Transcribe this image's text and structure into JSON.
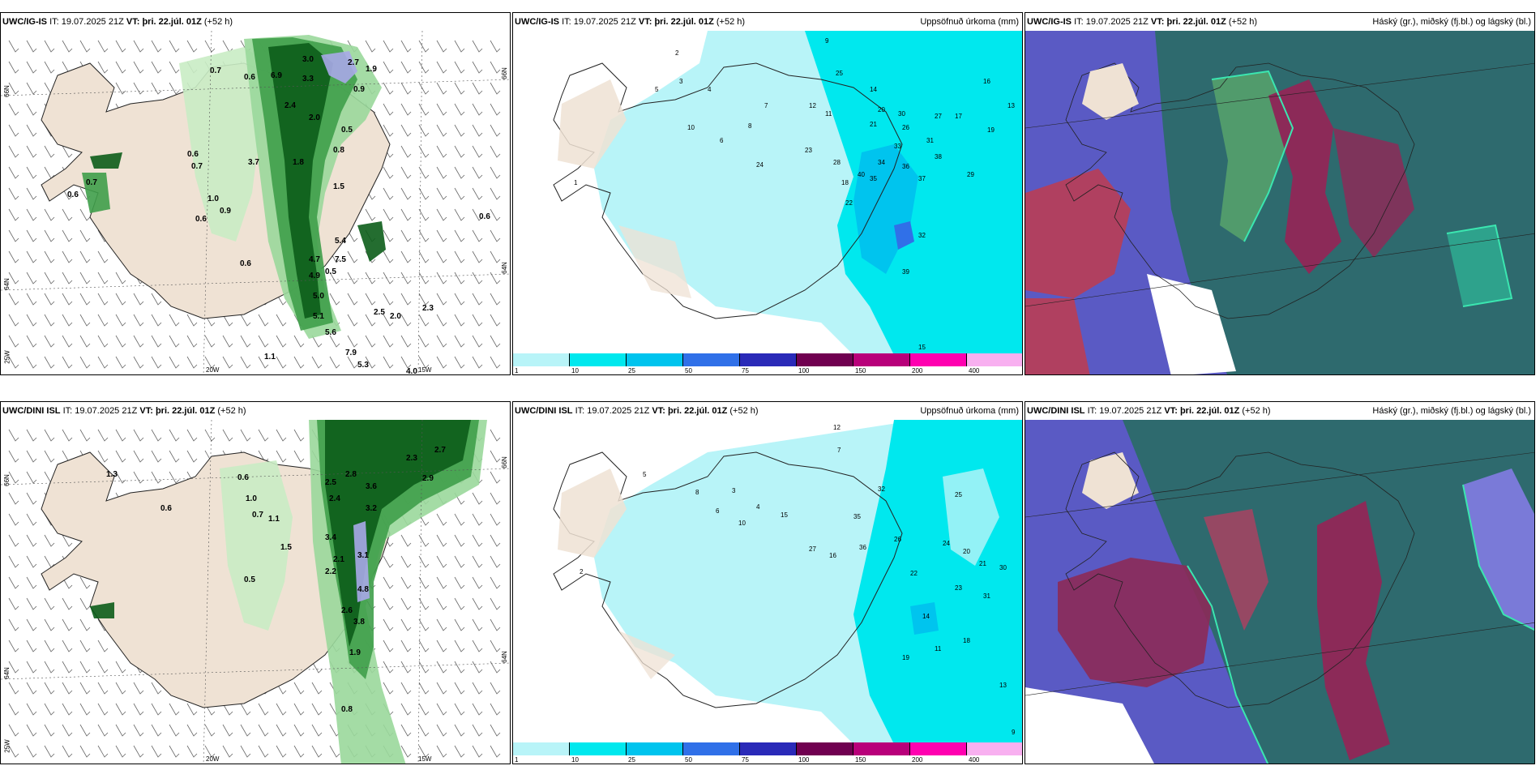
{
  "panels": {
    "p1": {
      "model": "UWC/IG-IS",
      "it_label": "IT:",
      "it": "19.07.2025 21Z",
      "vt_label": "VT:",
      "vt": "þri. 22.júl. 01Z",
      "lead": "(+52 h)",
      "right": ""
    },
    "p2": {
      "model": "UWC/IG-IS",
      "it_label": "IT:",
      "it": "19.07.2025 21Z",
      "vt_label": "VT:",
      "vt": "þri. 22.júl. 01Z",
      "lead": "(+52 h)",
      "right": "Uppsöfnuð úrkoma (mm)"
    },
    "p3": {
      "model": "UWC/IG-IS",
      "it_label": "IT:",
      "it": "19.07.2025 21Z",
      "vt_label": "VT:",
      "vt": "þri. 22.júl. 01Z",
      "lead": "(+52 h)",
      "right": "Háský (gr.), miðský (fj.bl.) og lágský (bl.)"
    },
    "p4": {
      "model": "UWC/DINI ISL",
      "it_label": "IT:",
      "it": "19.07.2025 21Z",
      "vt_label": "VT:",
      "vt": "þri. 22.júl. 01Z",
      "lead": "(+52 h)",
      "right": ""
    },
    "p5": {
      "model": "UWC/DINI ISL",
      "it_label": "IT:",
      "it": "19.07.2025 21Z",
      "vt_label": "VT:",
      "vt": "þri. 22.júl. 01Z",
      "lead": "(+52 h)",
      "right": "Uppsöfnuð úrkoma (mm)"
    },
    "p6": {
      "model": "UWC/DINI ISL",
      "it_label": "IT:",
      "it": "19.07.2025 21Z",
      "vt_label": "VT:",
      "vt": "þri. 22.júl. 01Z",
      "lead": "(+52 h)",
      "right": "Háský (gr.), miðský (fj.bl.) og lágský (bl.)"
    }
  },
  "axes": {
    "lat_66": "66N",
    "lat_64": "64N",
    "lon_25": "25W",
    "lon_20": "20W",
    "lon_15": "15W"
  },
  "legend": {
    "labels": [
      "1",
      "10",
      "25",
      "50",
      "75",
      "100",
      "150",
      "200",
      "400"
    ],
    "colors": [
      "#b8f4f8",
      "#00e8ee",
      "#00c4ee",
      "#3070e8",
      "#2a2ab8",
      "#700050",
      "#b8007a",
      "#ff00b0",
      "#f8b0f0"
    ]
  },
  "precip_values": {
    "p1": [
      "0.7",
      "0.6",
      "6.9",
      "3.0",
      "3.3",
      "2.7",
      "0.9",
      "1.9",
      "2.4",
      "2.0",
      "0.8",
      "0.5",
      "0.6",
      "3.7",
      "1.8",
      "1.5",
      "0.7",
      "1.0",
      "0.6",
      "0.9",
      "4.7",
      "4.9",
      "5.4",
      "7.5",
      "5.0",
      "5.1",
      "5.6",
      "7.9",
      "5.3",
      "4.0",
      "2.3",
      "2.5",
      "2.0",
      "0.6",
      "0.5",
      "1.1",
      "0.6",
      "0.7",
      "0.6"
    ],
    "p2": [
      "2",
      "3",
      "9",
      "5",
      "7",
      "4",
      "10",
      "6",
      "8",
      "12",
      "11",
      "25",
      "14",
      "16",
      "13",
      "20",
      "30",
      "26",
      "21",
      "27",
      "17",
      "19",
      "33",
      "31",
      "38",
      "34",
      "36",
      "40",
      "35",
      "37",
      "29",
      "23",
      "28",
      "24",
      "18",
      "22",
      "32",
      "39",
      "15",
      "1"
    ],
    "p4": [
      "0.6",
      "0.6",
      "1.0",
      "0.7",
      "1.1",
      "1.5",
      "0.5",
      "2.5",
      "2.8",
      "3.6",
      "3.2",
      "2.4",
      "3.4",
      "2.9",
      "2.7",
      "3.1",
      "2.2",
      "4.8",
      "3.8",
      "2.6",
      "1.9",
      "2.3",
      "2.1",
      "0.8",
      "1.3"
    ],
    "p5": [
      "12",
      "7",
      "8",
      "5",
      "3",
      "4",
      "6",
      "2",
      "10",
      "15",
      "27",
      "36",
      "32",
      "25",
      "26",
      "24",
      "20",
      "21",
      "30",
      "31",
      "22",
      "23",
      "35",
      "14",
      "19",
      "18",
      "13",
      "11",
      "16",
      "9"
    ]
  }
}
